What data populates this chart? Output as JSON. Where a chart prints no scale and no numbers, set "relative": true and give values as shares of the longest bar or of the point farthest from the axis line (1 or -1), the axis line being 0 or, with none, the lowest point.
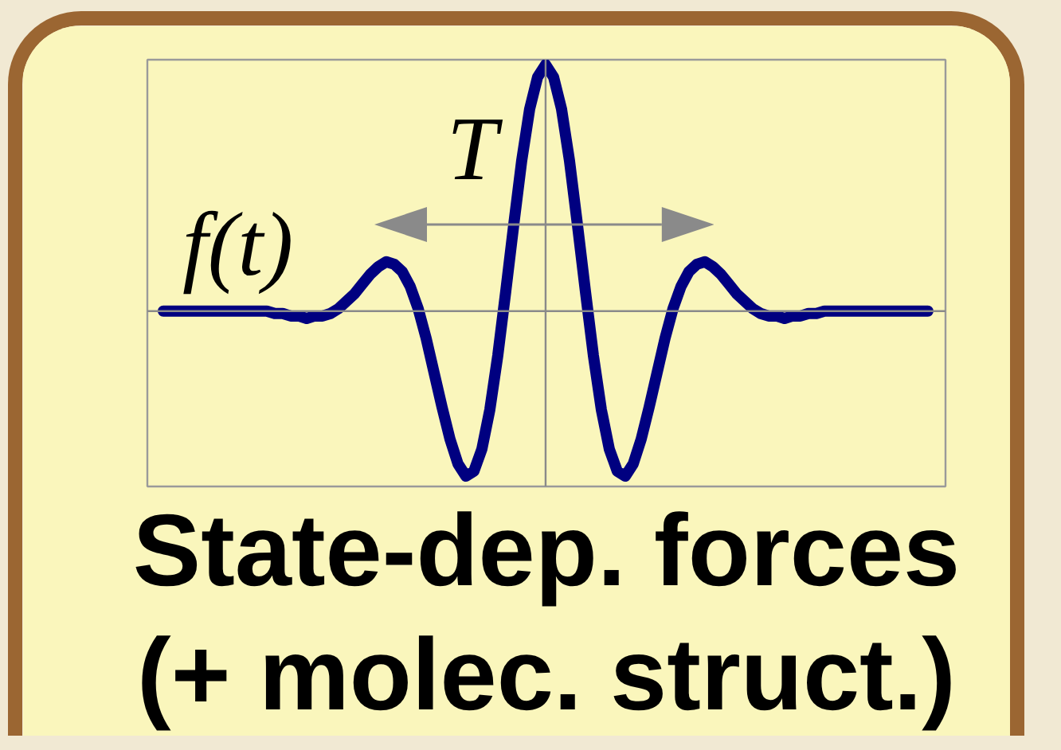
{
  "chart_data": {
    "type": "line",
    "title": "State-dep. forces (+ molec. struct.)",
    "relative": true,
    "categories": [
      null,
      null,
      null,
      null,
      null,
      null,
      null,
      null,
      null,
      null,
      null,
      null,
      null,
      null,
      null,
      null,
      null,
      null,
      null,
      null,
      null,
      null,
      null,
      null,
      null,
      null,
      null,
      null,
      null,
      null,
      null,
      null,
      null,
      null,
      null,
      null,
      null,
      null,
      null,
      null,
      null,
      null,
      null,
      null,
      null,
      null,
      null,
      null,
      null,
      null,
      null,
      null,
      null,
      null,
      null,
      null,
      null,
      null,
      null,
      null,
      null,
      null,
      null,
      null,
      null,
      null,
      null,
      null,
      null,
      null,
      null,
      null,
      null,
      null,
      null,
      null,
      null,
      null,
      null,
      null,
      null,
      null,
      null,
      null,
      null,
      null,
      null,
      null,
      null,
      null,
      null,
      null,
      null,
      null,
      null,
      null,
      null
    ],
    "series": [
      {
        "name": "f(t)",
        "color": "#000080",
        "values": [
          0,
          0,
          0,
          0,
          0,
          0,
          0,
          0,
          0,
          0,
          0,
          0,
          0,
          0,
          -0.01,
          -0.01,
          -0.02,
          -0.02,
          -0.03,
          -0.02,
          -0.02,
          -0.01,
          0.01,
          0.04,
          0.07,
          0.11,
          0.15,
          0.18,
          0.2,
          0.19,
          0.16,
          0.1,
          0.01,
          -0.11,
          -0.25,
          -0.39,
          -0.52,
          -0.62,
          -0.67,
          -0.65,
          -0.56,
          -0.4,
          -0.18,
          0.08,
          0.35,
          0.61,
          0.82,
          0.95,
          1,
          0.95,
          0.82,
          0.61,
          0.35,
          0.08,
          -0.18,
          -0.4,
          -0.56,
          -0.65,
          -0.67,
          -0.62,
          -0.52,
          -0.39,
          -0.25,
          -0.11,
          0.01,
          0.1,
          0.16,
          0.19,
          0.2,
          0.18,
          0.15,
          0.11,
          0.07,
          0.04,
          0.01,
          -0.01,
          -0.02,
          -0.02,
          -0.03,
          -0.02,
          -0.02,
          -0.01,
          -0.01,
          0,
          0,
          0,
          0,
          0,
          0,
          0,
          0,
          0,
          0,
          0,
          0,
          0,
          0
        ]
      }
    ],
    "annotations": [
      "T"
    ]
  }
}
